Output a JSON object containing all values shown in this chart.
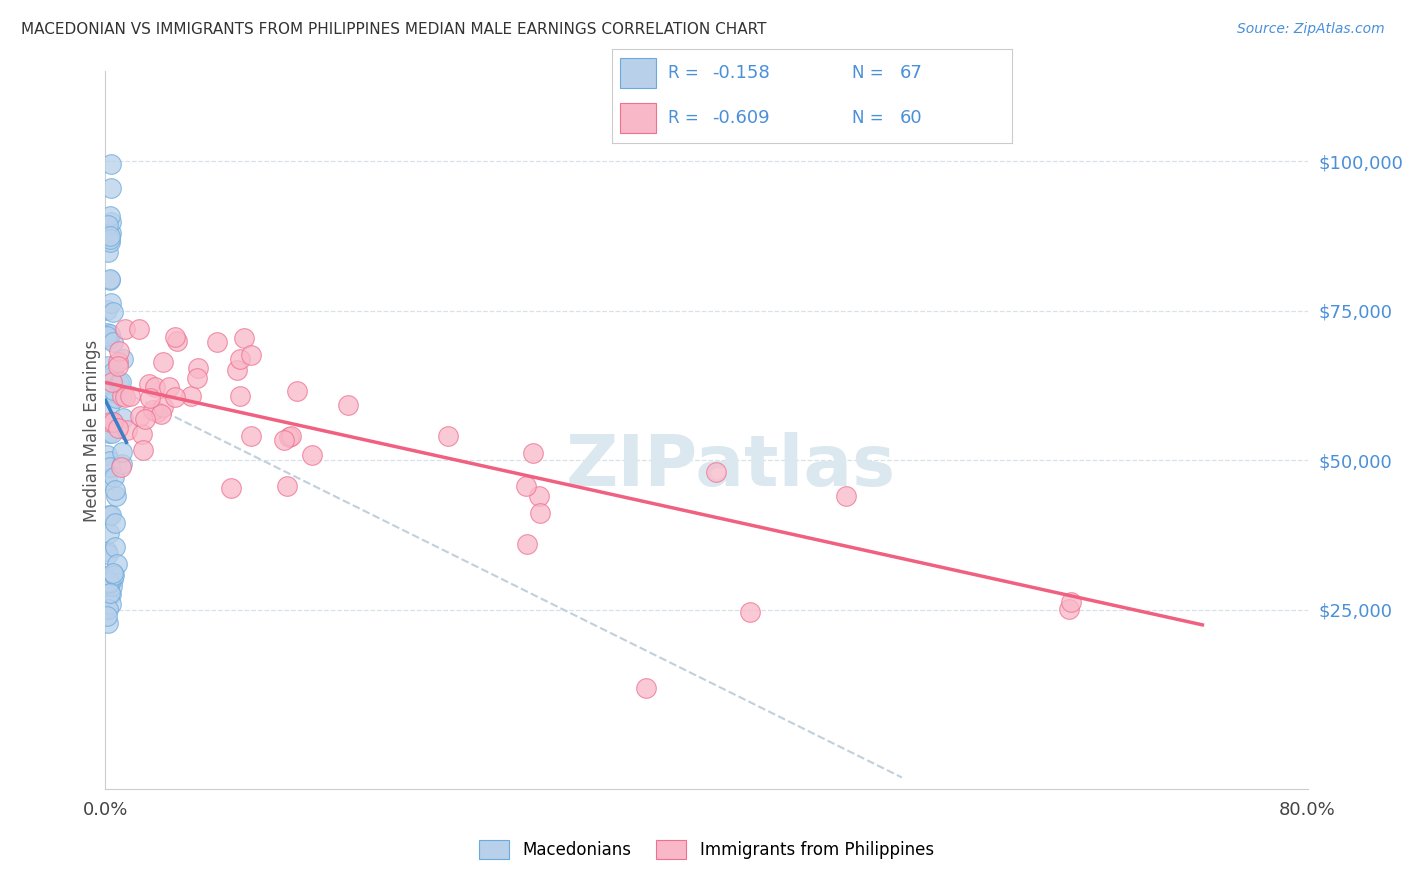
{
  "title": "MACEDONIAN VS IMMIGRANTS FROM PHILIPPINES MEDIAN MALE EARNINGS CORRELATION CHART",
  "source": "Source: ZipAtlas.com",
  "ylabel": "Median Male Earnings",
  "ytick_labels": [
    "$25,000",
    "$50,000",
    "$75,000",
    "$100,000"
  ],
  "ytick_values": [
    25000,
    50000,
    75000,
    100000
  ],
  "ylim": [
    -5000,
    115000
  ],
  "xlim": [
    0.0,
    0.8
  ],
  "r_macedonian": "-0.158",
  "n_macedonian": "67",
  "r_philippines": "-0.609",
  "n_philippines": "60",
  "color_mac_fill": "#b8d0ea",
  "color_mac_edge": "#6aabdd",
  "color_phil_fill": "#f8b8c8",
  "color_phil_edge": "#f07090",
  "color_line_mac": "#3a80c8",
  "color_line_phil": "#f06080",
  "color_dashed": "#c0d0dc",
  "color_legend_text": "#4a90d9",
  "color_title": "#333333",
  "color_source": "#4a90d9",
  "color_ylabel": "#555555",
  "color_ytick": "#4a90d9",
  "color_grid": "#d8e0e8",
  "color_watermark": "#dce8f0",
  "legend_label_mac": "Macedonians",
  "legend_label_phil": "Immigrants from Philippines",
  "watermark": "ZIPatlas",
  "mac_line_x": [
    0.0,
    0.014
  ],
  "mac_line_y": [
    60000,
    53000
  ],
  "phil_line_x": [
    0.0,
    0.73
  ],
  "phil_line_y": [
    63000,
    22500
  ],
  "dash_line_x": [
    0.0,
    0.53
  ],
  "dash_line_y": [
    63000,
    -3000
  ]
}
